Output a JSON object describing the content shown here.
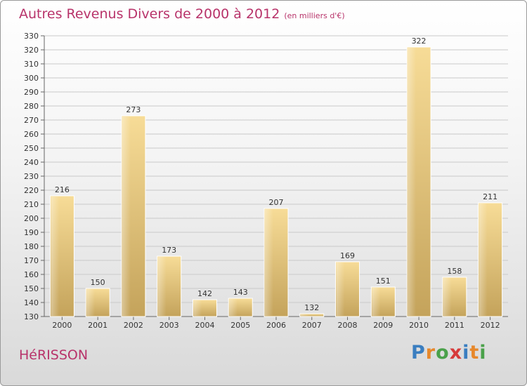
{
  "title": "Autres Revenus Divers de 2000 à 2012",
  "unit_note": "(en milliers d'€)",
  "place_name": "HéRISSON",
  "logo": {
    "text": "Proxiti",
    "letters": [
      {
        "ch": "P",
        "color": "#3a7ec0"
      },
      {
        "ch": "r",
        "color": "#e7882b"
      },
      {
        "ch": "o",
        "color": "#4aa14a"
      },
      {
        "ch": "x",
        "color": "#d63a3a"
      },
      {
        "ch": "i",
        "color": "#3a7ec0"
      },
      {
        "ch": "t",
        "color": "#e7882b"
      },
      {
        "ch": "i",
        "color": "#4aa14a"
      }
    ]
  },
  "chart_data": {
    "type": "bar",
    "categories": [
      "2000",
      "2001",
      "2002",
      "2003",
      "2004",
      "2005",
      "2006",
      "2007",
      "2008",
      "2009",
      "2010",
      "2011",
      "2012"
    ],
    "values": [
      216,
      150,
      273,
      173,
      142,
      143,
      207,
      132,
      169,
      151,
      322,
      158,
      211
    ],
    "ylim": [
      130,
      330
    ],
    "yticks": [
      130,
      140,
      150,
      160,
      170,
      180,
      190,
      200,
      210,
      220,
      230,
      240,
      250,
      260,
      270,
      280,
      290,
      300,
      310,
      320,
      330
    ],
    "grid": true,
    "bar_color": "#e2c57a"
  }
}
